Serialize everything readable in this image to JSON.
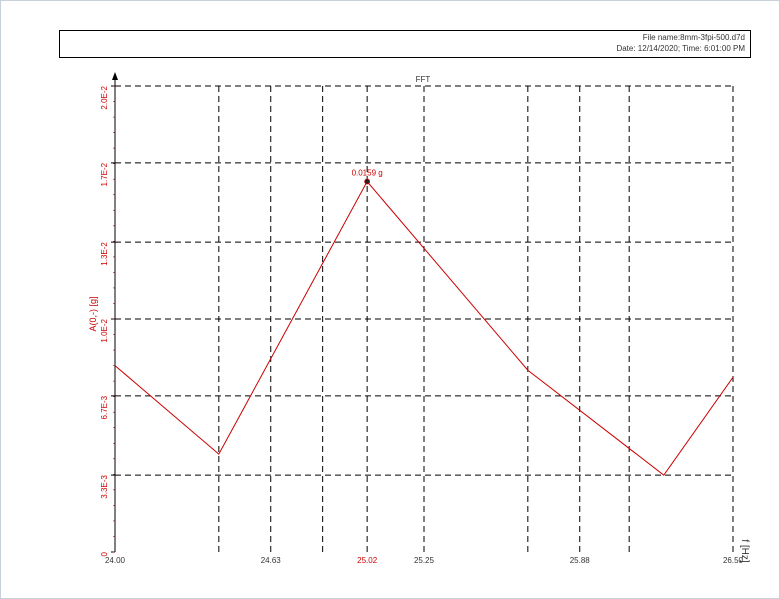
{
  "info": {
    "file_label": "File name:",
    "file_name": "8mm-3fpi-500.d7d",
    "date_label": "Date: ",
    "date": "12/14/2020",
    "time_label": "; Time: ",
    "time": "6:01:00 PM"
  },
  "chart_data": {
    "type": "line",
    "title": "FFT",
    "xlabel": "f [Hz]",
    "ylabel": "A(0,-) [g]",
    "xlim": [
      24.0,
      26.5
    ],
    "ylim": [
      0,
      0.02
    ],
    "x_tick_values": [
      24.0,
      24.42,
      24.63,
      24.84,
      25.25,
      25.67,
      25.88,
      26.08,
      26.5
    ],
    "x_tick_labels": [
      "24.00",
      "",
      "24.63",
      "",
      "25.25",
      "",
      "25.88",
      "",
      "26.50"
    ],
    "x_highlight": {
      "value": 25.02,
      "label": "25.02"
    },
    "y_tick_values": [
      0,
      0.0033,
      0.0067,
      0.01,
      0.0133,
      0.0167,
      0.02
    ],
    "y_tick_labels": [
      "0",
      "3.3E-3",
      "6.7E-3",
      "1.0E-2",
      "1.3E-2",
      "1.7E-2",
      "2.0E-2"
    ],
    "series": [
      {
        "color": "#cc0000",
        "x": [
          24.0,
          24.42,
          25.02,
          25.67,
          26.22,
          26.5
        ],
        "y": [
          0.008,
          0.0042,
          0.0159,
          0.0078,
          0.0033,
          0.0075
        ]
      }
    ],
    "annotations": [
      {
        "x": 25.02,
        "y": 0.0159,
        "label": "0.0159 g"
      }
    ],
    "grid": true,
    "grid_style": "dashed"
  }
}
